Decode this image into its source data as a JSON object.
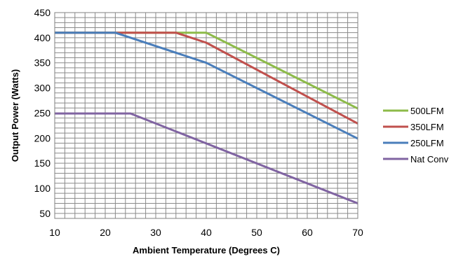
{
  "chart_data": {
    "type": "line",
    "xlabel": "Ambient Temperature (Degrees C)",
    "ylabel": "Output Power (Watts)",
    "xlim": [
      10,
      70
    ],
    "ylim": [
      40,
      450
    ],
    "x_ticks": [
      10,
      20,
      30,
      40,
      50,
      60,
      70
    ],
    "y_ticks": [
      50,
      100,
      150,
      200,
      250,
      300,
      350,
      400,
      450
    ],
    "grid": true,
    "legend_position": "right",
    "series": [
      {
        "name": "500LFM",
        "color": "#8dbb49",
        "points": [
          [
            10,
            410
          ],
          [
            40,
            410
          ],
          [
            70,
            259
          ]
        ]
      },
      {
        "name": "350LFM",
        "color": "#c0504d",
        "points": [
          [
            10,
            410
          ],
          [
            34,
            410
          ],
          [
            40,
            390
          ],
          [
            70,
            229
          ]
        ]
      },
      {
        "name": "250LFM",
        "color": "#4a7ebb",
        "points": [
          [
            10,
            410
          ],
          [
            22,
            410
          ],
          [
            40,
            350
          ],
          [
            70,
            199
          ]
        ]
      },
      {
        "name": "Nat Conv",
        "color": "#8064a2",
        "points": [
          [
            10,
            249
          ],
          [
            25,
            249
          ],
          [
            70,
            70
          ]
        ]
      }
    ]
  }
}
